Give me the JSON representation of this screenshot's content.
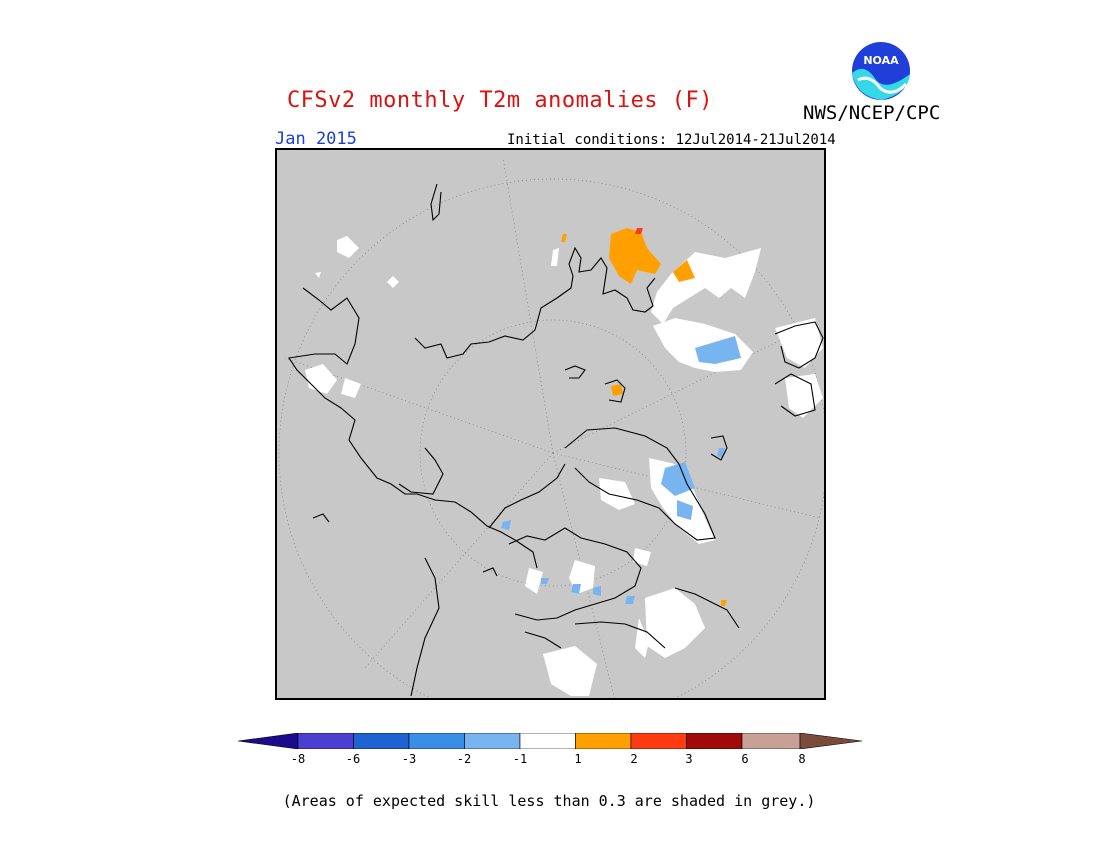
{
  "header": {
    "title": "CFSv2 monthly T2m anomalies (F)",
    "agency": "NWS/NCEP/CPC",
    "logo_text": "NOAA",
    "month": "Jan 2015",
    "initial_conditions": "Initial conditions: 12Jul2014-21Jul2014"
  },
  "map": {
    "projection": "polar stereographic (north pole)",
    "background_color": "#c8c8c8",
    "coastline_color": "#000000",
    "graticule": "dotted"
  },
  "legend": {
    "ticks": [
      "-8",
      "-6",
      "-3",
      "-2",
      "-1",
      "1",
      "2",
      "3",
      "6",
      "8"
    ],
    "colors": [
      "#1e0a8c",
      "#4a3fd0",
      "#1f62d1",
      "#3a8ee8",
      "#78b4f0",
      "#ffffff",
      "#ffa000",
      "#ff3c10",
      "#a00a0a",
      "#c8a096",
      "#7a4a3a"
    ]
  },
  "footnote": "(Areas of expected skill less than 0.3 are shaded in grey.)"
}
